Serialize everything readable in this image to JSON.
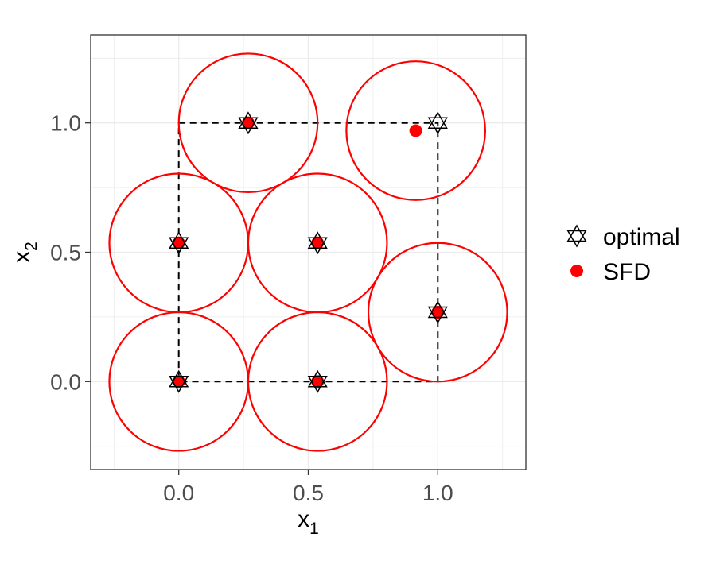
{
  "chart_data": {
    "type": "scatter",
    "xlabel": "x",
    "xlabel_sub": "1",
    "ylabel": "x",
    "ylabel_sub": "2",
    "xlim": [
      -0.34,
      1.34
    ],
    "ylim": [
      -0.34,
      1.34
    ],
    "x_ticks": [
      0.0,
      0.5,
      1.0
    ],
    "y_ticks": [
      0.0,
      0.5,
      1.0
    ],
    "x_tick_labels": [
      "0.0",
      "0.5",
      "1.0"
    ],
    "y_tick_labels": [
      "0.0",
      "0.5",
      "1.0"
    ],
    "grid": true,
    "legend_position": "right",
    "boundary_path": [
      [
        0,
        1
      ],
      [
        1,
        1
      ],
      [
        1,
        0
      ],
      [
        0,
        0
      ],
      [
        0,
        1
      ]
    ],
    "circle_radius": 0.268,
    "series": [
      {
        "name": "optimal",
        "marker": "hexagram",
        "color": "#000000",
        "points": [
          [
            0.268,
            1.0
          ],
          [
            1.0,
            1.0
          ],
          [
            0.0,
            0.536
          ],
          [
            0.536,
            0.536
          ],
          [
            1.0,
            0.268
          ],
          [
            0.0,
            0.0
          ],
          [
            0.536,
            0.0
          ]
        ]
      },
      {
        "name": "SFD",
        "marker": "filled-circle",
        "color": "#ff0000",
        "points": [
          [
            0.268,
            1.0
          ],
          [
            0.915,
            0.97
          ],
          [
            0.0,
            0.536
          ],
          [
            0.536,
            0.536
          ],
          [
            1.0,
            0.268
          ],
          [
            0.0,
            0.0
          ],
          [
            0.536,
            0.0
          ]
        ]
      }
    ],
    "circles_around": "SFD",
    "circle_color": "#ff0000"
  }
}
